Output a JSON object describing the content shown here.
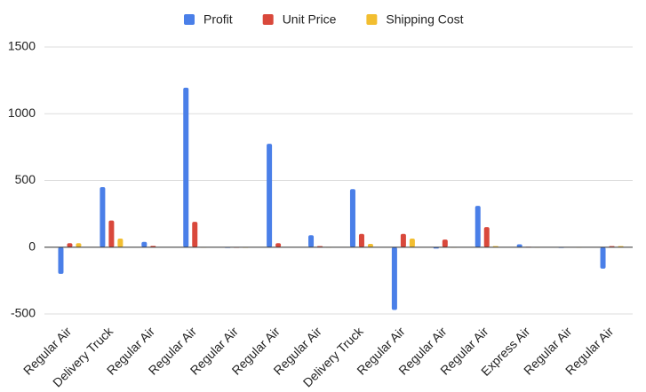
{
  "chart_data": {
    "type": "bar",
    "categories": [
      "Regular Air",
      "Delivery Truck",
      "Regular Air",
      "Regular Air",
      "Regular Air",
      "Regular Air",
      "Regular Air",
      "Delivery Truck",
      "Regular Air",
      "Regular Air",
      "Regular Air",
      "Express Air",
      "Regular Air",
      "Regular Air"
    ],
    "series": [
      {
        "name": "Profit",
        "color": "#4a7fe8",
        "values": [
          -200,
          450,
          40,
          1195,
          -5,
          775,
          90,
          435,
          -470,
          -10,
          310,
          22,
          -5,
          -160
        ]
      },
      {
        "name": "Unit Price",
        "color": "#d9483b",
        "values": [
          30,
          200,
          10,
          190,
          0,
          30,
          8,
          100,
          100,
          57,
          150,
          3,
          2,
          8
        ]
      },
      {
        "name": "Shipping Cost",
        "color": "#f2be30",
        "values": [
          30,
          65,
          2,
          1,
          0,
          2,
          1,
          25,
          65,
          1,
          8,
          1,
          1,
          8
        ]
      }
    ],
    "ylim": [
      -500,
      1500
    ],
    "yticks": [
      -500,
      0,
      500,
      1000,
      1500
    ],
    "grid": true,
    "legend": "top"
  }
}
